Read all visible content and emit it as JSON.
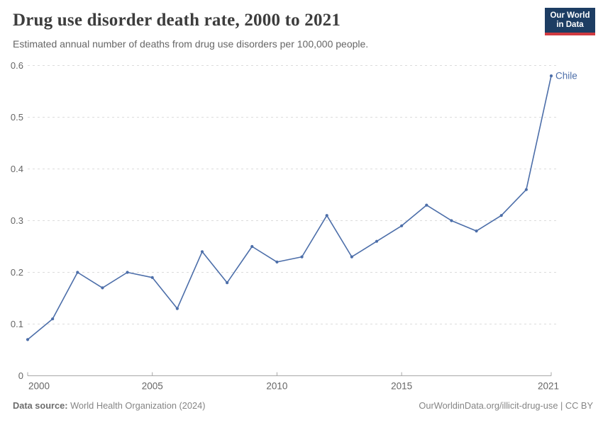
{
  "header": {
    "title": "Drug use disorder death rate, 2000 to 2021",
    "subtitle": "Estimated annual number of deaths from drug use disorders per 100,000 people.",
    "logo": {
      "line1": "Our World",
      "line2": "in Data",
      "bg_color": "#1d3d63",
      "stripe_color": "#d03a40"
    }
  },
  "chart_data": {
    "type": "line",
    "title": "Drug use disorder death rate, 2000 to 2021",
    "xlabel": "",
    "ylabel": "",
    "x": [
      2000,
      2001,
      2002,
      2003,
      2004,
      2005,
      2006,
      2007,
      2008,
      2009,
      2010,
      2011,
      2012,
      2013,
      2014,
      2015,
      2016,
      2017,
      2018,
      2019,
      2020,
      2021
    ],
    "series": [
      {
        "name": "Chile",
        "color": "#4c6ea9",
        "values": [
          0.07,
          0.11,
          0.2,
          0.17,
          0.2,
          0.19,
          0.13,
          0.24,
          0.18,
          0.25,
          0.22,
          0.23,
          0.31,
          0.23,
          0.26,
          0.29,
          0.33,
          0.3,
          0.28,
          0.31,
          0.36,
          0.58
        ]
      }
    ],
    "xlim": [
      2000,
      2021
    ],
    "ylim": [
      0,
      0.6
    ],
    "x_ticks": [
      2000,
      2005,
      2010,
      2015,
      2021
    ],
    "y_ticks": [
      0,
      0.1,
      0.2,
      0.3,
      0.4,
      0.5,
      0.6
    ],
    "grid": "horizontal-dashed",
    "legend_position": "end-of-line-label",
    "end_label": "Chile",
    "colors": {
      "grid": "#dcdcdc",
      "axis": "#a8a8a8",
      "tick_text": "#666666"
    }
  },
  "footer": {
    "source_label": "Data source:",
    "source_value": " World Health Organization (2024)",
    "credit": "OurWorldinData.org/illicit-drug-use | CC BY"
  }
}
